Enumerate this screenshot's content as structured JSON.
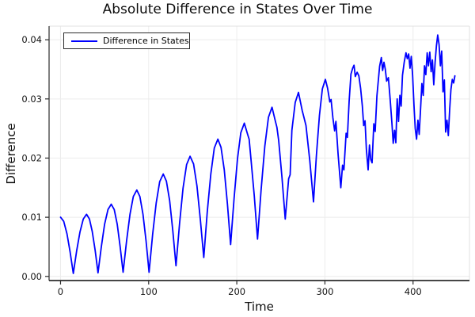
{
  "chart_data": {
    "type": "line",
    "title": "Absolute Difference in States Over Time",
    "xlabel": "Time",
    "ylabel": "Difference",
    "xlim": [
      -13,
      464
    ],
    "ylim": [
      -0.0007,
      0.0423
    ],
    "x_ticks": [
      0,
      100,
      200,
      300,
      400
    ],
    "y_ticks": [
      0.0,
      0.01,
      0.02,
      0.03,
      0.04
    ],
    "grid": true,
    "background_color": "#ffffff",
    "grid_color": "#ececec",
    "axis_color": "#2b2b2b",
    "legend": {
      "position": "top-left",
      "entries": [
        {
          "label": "Difference in States",
          "color": "#0000ff"
        }
      ]
    },
    "series": [
      {
        "name": "Difference in States",
        "color": "#0000ff",
        "x": [
          0,
          3.6,
          7.3,
          10.9,
          14.5,
          18.3,
          22,
          25.8,
          29.5,
          32.8,
          36,
          39.3,
          42.5,
          46.3,
          50,
          53.8,
          57.5,
          60.9,
          64.3,
          67.6,
          71,
          74.9,
          78.8,
          82.6,
          86.5,
          90,
          93.5,
          97,
          100.5,
          104.5,
          108.5,
          112.5,
          116.5,
          120.1,
          123.8,
          127.4,
          131,
          135,
          139,
          143,
          147,
          150.9,
          154.8,
          158.6,
          162.5,
          166.5,
          170.5,
          174.5,
          178.5,
          182.1,
          185.8,
          189.4,
          193,
          196.9,
          200.8,
          204.6,
          208.5,
          212.3,
          214,
          216,
          219.8,
          223.5,
          227.6,
          231.8,
          235.9,
          240,
          243.8,
          245.5,
          247.5,
          251.3,
          255,
          258.8,
          260.5,
          262.5,
          266.3,
          270,
          274.3,
          276,
          278.5,
          282.8,
          287,
          290.4,
          293.8,
          297.1,
          300.5,
          303,
          305.5,
          307,
          309,
          311,
          312.5,
          315,
          318,
          320,
          321.5,
          324,
          325.5,
          327.5,
          329.5,
          331.5,
          333,
          334.5,
          336.5,
          338.5,
          340.5,
          342.5,
          344,
          345.5,
          347,
          349,
          350.5,
          352,
          353.5,
          355.5,
          357,
          359,
          360.5,
          362,
          364,
          365.5,
          367,
          368.5,
          370,
          372,
          374,
          376,
          377.5,
          379,
          380.5,
          382,
          383.5,
          385,
          386.5,
          388,
          390,
          392,
          393.5,
          395,
          396.5,
          398,
          399.5,
          401,
          402.5,
          404,
          405.5,
          407,
          408.5,
          410,
          411.5,
          413,
          414.5,
          416,
          417.5,
          419,
          420.5,
          422,
          423.5,
          425,
          426.5,
          428,
          429.5,
          431,
          432.5,
          434,
          435.5,
          437,
          438.5,
          440,
          441.5,
          443,
          444.5,
          446,
          447.5
        ],
        "y": [
          0.01,
          0.0093,
          0.0072,
          0.0041,
          0.0005,
          0.0043,
          0.0075,
          0.0097,
          0.0105,
          0.0097,
          0.0076,
          0.0044,
          0.0006,
          0.005,
          0.0088,
          0.0113,
          0.0122,
          0.0113,
          0.0088,
          0.0051,
          0.0007,
          0.006,
          0.0105,
          0.0135,
          0.0146,
          0.0135,
          0.0105,
          0.006,
          0.0007,
          0.0071,
          0.0124,
          0.016,
          0.0173,
          0.0161,
          0.0128,
          0.0077,
          0.0018,
          0.0089,
          0.0149,
          0.0189,
          0.0203,
          0.019,
          0.0153,
          0.0097,
          0.0032,
          0.0109,
          0.0173,
          0.0217,
          0.0232,
          0.0218,
          0.018,
          0.0122,
          0.0054,
          0.0132,
          0.0199,
          0.0243,
          0.0259,
          0.024,
          0.0232,
          0.02,
          0.0136,
          0.0063,
          0.0146,
          0.022,
          0.0269,
          0.0286,
          0.0262,
          0.0252,
          0.023,
          0.0167,
          0.0097,
          0.0165,
          0.0172,
          0.0247,
          0.0294,
          0.0311,
          0.028,
          0.027,
          0.0255,
          0.0196,
          0.0126,
          0.0205,
          0.0272,
          0.0317,
          0.0333,
          0.0318,
          0.0295,
          0.0299,
          0.0268,
          0.0246,
          0.0262,
          0.0206,
          0.015,
          0.0188,
          0.018,
          0.0242,
          0.0235,
          0.0296,
          0.0342,
          0.0352,
          0.0357,
          0.0338,
          0.0345,
          0.0339,
          0.0318,
          0.0288,
          0.0255,
          0.0263,
          0.0215,
          0.018,
          0.0222,
          0.0198,
          0.0192,
          0.0258,
          0.0245,
          0.0305,
          0.033,
          0.0355,
          0.037,
          0.0348,
          0.0362,
          0.035,
          0.033,
          0.0336,
          0.03,
          0.026,
          0.0225,
          0.0247,
          0.0226,
          0.03,
          0.0262,
          0.0306,
          0.0288,
          0.034,
          0.0362,
          0.0378,
          0.0368,
          0.0376,
          0.0352,
          0.0372,
          0.034,
          0.029,
          0.025,
          0.0232,
          0.0264,
          0.024,
          0.0282,
          0.0326,
          0.0306,
          0.0356,
          0.0341,
          0.0378,
          0.0356,
          0.0379,
          0.0346,
          0.0366,
          0.0324,
          0.0362,
          0.039,
          0.0408,
          0.0392,
          0.0356,
          0.0381,
          0.0312,
          0.0332,
          0.0244,
          0.0264,
          0.0238,
          0.0282,
          0.0316,
          0.0333,
          0.0327,
          0.0339
        ]
      }
    ]
  }
}
